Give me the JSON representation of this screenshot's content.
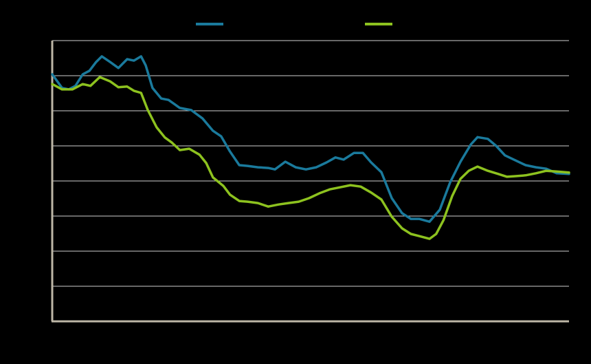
{
  "chart_data": {
    "type": "line",
    "xlim": [
      0,
      100
    ],
    "ylim": [
      0,
      8
    ],
    "yticks": [
      0,
      1,
      2,
      3,
      4,
      5,
      6,
      7,
      8
    ],
    "grid": true,
    "series": [
      {
        "color": "#1a7a9c",
        "x": [
          0,
          1.9,
          3.2,
          4.5,
          5.9,
          7.2,
          8.5,
          9.6,
          11.2,
          12.8,
          14.5,
          15.8,
          17.2,
          18.1,
          19.4,
          21.1,
          22.5,
          24.7,
          26.9,
          29.1,
          31.1,
          32.7,
          34.4,
          36.2,
          37.8,
          39.8,
          41.8,
          43.1,
          45.1,
          47.1,
          49.1,
          51.1,
          53.1,
          54.8,
          56.4,
          58.4,
          60.1,
          61.7,
          63.7,
          65.7,
          67.7,
          69.4,
          71.0,
          73.0,
          75.0,
          77.0,
          79.0,
          81.0,
          82.3,
          84.3,
          85.9,
          87.6,
          89.6,
          91.6,
          93.6,
          95.6,
          97.6,
          100
        ],
        "values": [
          7.04,
          6.65,
          6.61,
          6.71,
          7.04,
          7.14,
          7.39,
          7.55,
          7.39,
          7.22,
          7.47,
          7.43,
          7.55,
          7.29,
          6.65,
          6.35,
          6.31,
          6.08,
          6.02,
          5.78,
          5.43,
          5.27,
          4.84,
          4.45,
          4.43,
          4.39,
          4.37,
          4.33,
          4.55,
          4.39,
          4.33,
          4.39,
          4.53,
          4.67,
          4.61,
          4.8,
          4.8,
          4.53,
          4.25,
          3.51,
          3.08,
          2.92,
          2.92,
          2.84,
          3.18,
          3.96,
          4.55,
          5.04,
          5.25,
          5.2,
          5.0,
          4.73,
          4.59,
          4.45,
          4.39,
          4.35,
          4.22,
          4.2
        ]
      },
      {
        "color": "#8dc21f",
        "x": [
          0,
          1.9,
          3.9,
          5.9,
          7.4,
          9.2,
          11.2,
          12.8,
          14.5,
          15.8,
          17.2,
          18.5,
          20.2,
          21.8,
          23.1,
          24.7,
          26.5,
          28.5,
          29.8,
          31.1,
          33.1,
          34.4,
          36.2,
          37.8,
          39.8,
          41.8,
          43.8,
          45.7,
          47.7,
          49.7,
          51.7,
          53.7,
          55.7,
          57.7,
          59.7,
          61.7,
          63.7,
          65.7,
          67.7,
          69.4,
          71.0,
          73.0,
          74.3,
          75.7,
          77.4,
          79.0,
          80.6,
          82.3,
          84.3,
          86.3,
          88.0,
          89.9,
          91.6,
          93.6,
          95.6,
          97.6,
          100
        ],
        "values": [
          6.76,
          6.61,
          6.61,
          6.76,
          6.71,
          6.96,
          6.84,
          6.67,
          6.69,
          6.57,
          6.51,
          6.02,
          5.53,
          5.24,
          5.1,
          4.88,
          4.92,
          4.75,
          4.51,
          4.1,
          3.86,
          3.61,
          3.43,
          3.41,
          3.37,
          3.27,
          3.33,
          3.37,
          3.41,
          3.51,
          3.65,
          3.76,
          3.82,
          3.88,
          3.84,
          3.67,
          3.47,
          2.98,
          2.65,
          2.49,
          2.43,
          2.35,
          2.49,
          2.88,
          3.57,
          4.06,
          4.29,
          4.41,
          4.29,
          4.2,
          4.12,
          4.14,
          4.16,
          4.22,
          4.29,
          4.27,
          4.24
        ]
      }
    ]
  }
}
